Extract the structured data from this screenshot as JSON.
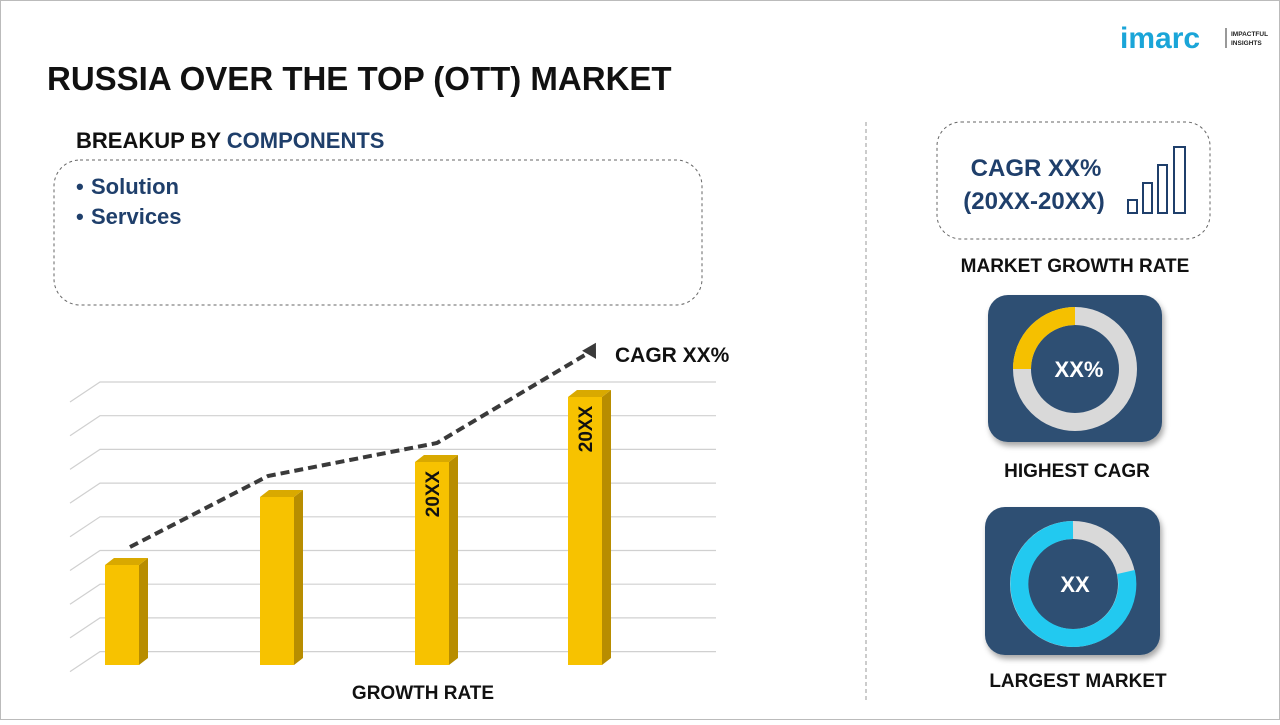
{
  "header": {
    "title": "RUSSIA OVER THE TOP (OTT) MARKET",
    "logo": "imarc",
    "logo_tagline": [
      "IMPACTFUL",
      "INSIGHTS"
    ]
  },
  "breakup": {
    "label": "BREAKUP BY",
    "highlight": "COMPONENTS",
    "items": [
      "Solution",
      "Services"
    ]
  },
  "growth_chart": {
    "arrow_label": "CAGR XX%",
    "bar_labels": [
      "20XX",
      "20XX"
    ],
    "axis_label": "GROWTH RATE"
  },
  "cards": {
    "market_growth": {
      "cagr": "CAGR XX%",
      "period": "(20XX-20XX)",
      "caption": "MARKET GROWTH RATE"
    },
    "highest_cagr": {
      "value": "XX%",
      "caption": "HIGHEST CAGR"
    },
    "largest_market": {
      "value": "XX",
      "caption": "LARGEST MARKET"
    }
  }
}
